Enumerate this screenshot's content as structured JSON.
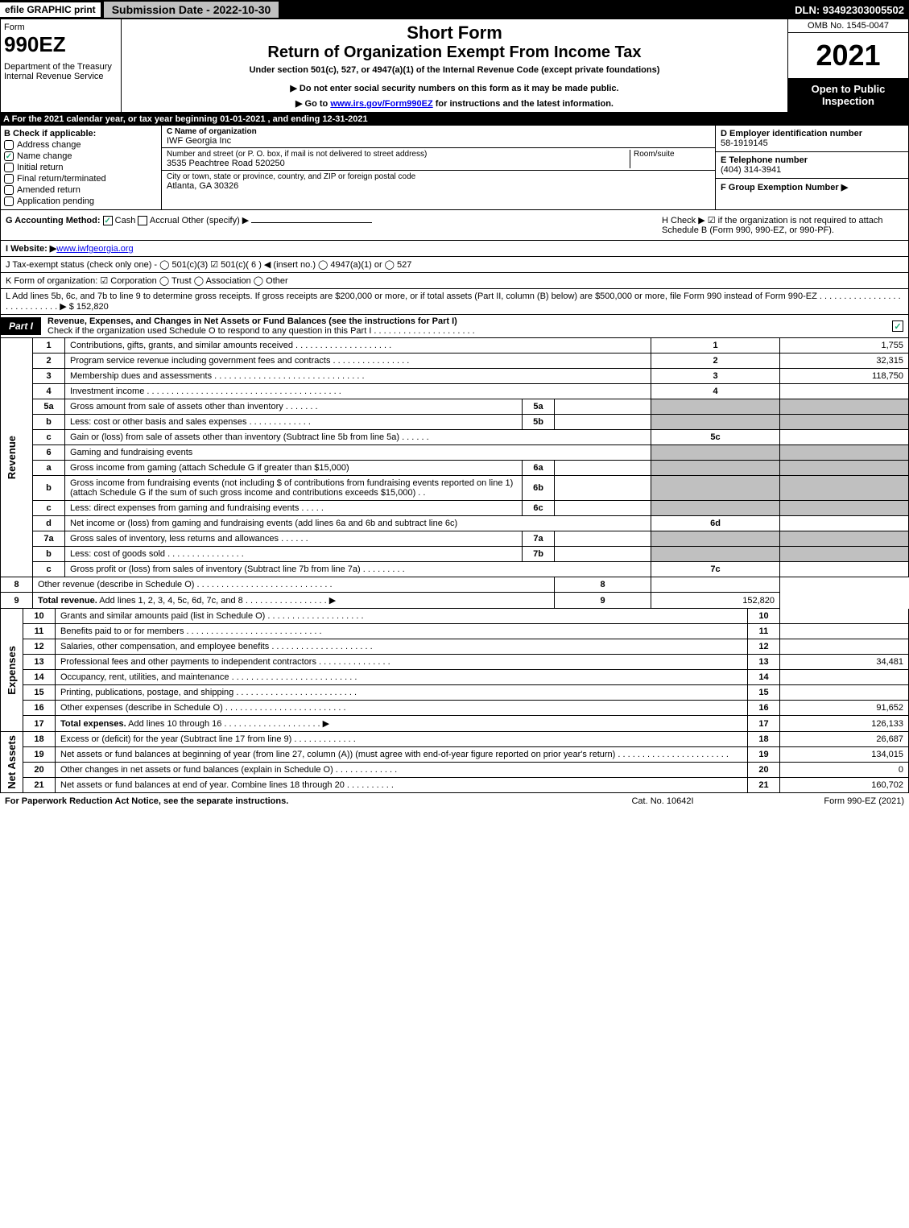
{
  "topbar": {
    "efile": "efile GRAPHIC print",
    "subdate": "Submission Date - 2022-10-30",
    "dln": "DLN: 93492303005502"
  },
  "header": {
    "form": "Form",
    "formnum": "990EZ",
    "dept": "Department of the Treasury\nInternal Revenue Service",
    "short": "Short Form",
    "title": "Return of Organization Exempt From Income Tax",
    "sub": "Under section 501(c), 527, or 4947(a)(1) of the Internal Revenue Code (except private foundations)",
    "note": "▶ Do not enter social security numbers on this form as it may be made public.",
    "linkpre": "▶ Go to ",
    "linkurl": "www.irs.gov/Form990EZ",
    "linkpost": " for instructions and the latest information.",
    "omb": "OMB No. 1545-0047",
    "year": "2021",
    "inspect": "Open to Public Inspection"
  },
  "rowA": "A  For the 2021 calendar year, or tax year beginning 01-01-2021 , and ending 12-31-2021",
  "sectionB": {
    "header": "B  Check if applicable:",
    "items": [
      {
        "label": "Address change",
        "checked": false
      },
      {
        "label": "Name change",
        "checked": true
      },
      {
        "label": "Initial return",
        "checked": false
      },
      {
        "label": "Final return/terminated",
        "checked": false
      },
      {
        "label": "Amended return",
        "checked": false
      },
      {
        "label": "Application pending",
        "checked": false
      }
    ],
    "c_label": "C Name of organization",
    "c_name": "IWF Georgia Inc",
    "street_label": "Number and street (or P. O. box, if mail is not delivered to street address)",
    "street": "3535 Peachtree Road 520250",
    "room_label": "Room/suite",
    "city_label": "City or town, state or province, country, and ZIP or foreign postal code",
    "city": "Atlanta, GA  30326",
    "d_label": "D Employer identification number",
    "d_val": "58-1919145",
    "e_label": "E Telephone number",
    "e_val": "(404) 314-3941",
    "f_label": "F Group Exemption Number  ▶"
  },
  "rowGH": {
    "g_label": "G Accounting Method:",
    "g_cash": "Cash",
    "g_accrual": "Accrual",
    "g_other": "Other (specify) ▶",
    "h_text": "H  Check ▶ ☑ if the organization is not required to attach Schedule B (Form 990, 990-EZ, or 990-PF)."
  },
  "rowI": {
    "label": "I Website: ▶",
    "val": "www.iwfgeorgia.org"
  },
  "rowJ": "J Tax-exempt status (check only one) - ◯ 501(c)(3) ☑ 501(c)( 6 ) ◀ (insert no.) ◯ 4947(a)(1) or ◯ 527",
  "rowK": "K Form of organization: ☑ Corporation  ◯ Trust  ◯ Association  ◯ Other",
  "rowL": {
    "text": "L Add lines 5b, 6c, and 7b to line 9 to determine gross receipts. If gross receipts are $200,000 or more, or if total assets (Part II, column (B) below) are $500,000 or more, file Form 990 instead of Form 990-EZ  . . . . . . . . . . . . . . . . . . . . . . . . . . . . ▶ $",
    "amt": " 152,820"
  },
  "part1": {
    "tab": "Part I",
    "title": "Revenue, Expenses, and Changes in Net Assets or Fund Balances (see the instructions for Part I)",
    "sub": "Check if the organization used Schedule O to respond to any question in this Part I . . . . . . . . . . . . . . . . . . . . ."
  },
  "sections": {
    "revenue": "Revenue",
    "expenses": "Expenses",
    "netassets": "Net Assets"
  },
  "lines": [
    {
      "n": "1",
      "desc": "Contributions, gifts, grants, and similar amounts received . . . . . . . . . . . . . . . . . . . .",
      "ln": "1",
      "amt": "1,755"
    },
    {
      "n": "2",
      "desc": "Program service revenue including government fees and contracts . . . . . . . . . . . . . . . .",
      "ln": "2",
      "amt": "32,315"
    },
    {
      "n": "3",
      "desc": "Membership dues and assessments . . . . . . . . . . . . . . . . . . . . . . . . . . . . . . .",
      "ln": "3",
      "amt": "118,750"
    },
    {
      "n": "4",
      "desc": "Investment income . . . . . . . . . . . . . . . . . . . . . . . . . . . . . . . . . . . . . . . .",
      "ln": "4",
      "amt": ""
    },
    {
      "n": "5a",
      "desc": "Gross amount from sale of assets other than inventory . . . . . . .",
      "sub": "5a",
      "subval": "",
      "ln": "",
      "amt": "",
      "grey": true
    },
    {
      "n": "b",
      "desc": "Less: cost or other basis and sales expenses . . . . . . . . . . . . .",
      "sub": "5b",
      "subval": "",
      "ln": "",
      "amt": "",
      "grey": true
    },
    {
      "n": "c",
      "desc": "Gain or (loss) from sale of assets other than inventory (Subtract line 5b from line 5a)  . . . . . .",
      "ln": "5c",
      "amt": ""
    },
    {
      "n": "6",
      "desc": "Gaming and fundraising events",
      "ln": "",
      "amt": "",
      "grey": true
    },
    {
      "n": "a",
      "desc": "Gross income from gaming (attach Schedule G if greater than $15,000)",
      "sub": "6a",
      "subval": "",
      "ln": "",
      "amt": "",
      "grey": true
    },
    {
      "n": "b",
      "desc": "Gross income from fundraising events (not including $                       of contributions from fundraising events reported on line 1) (attach Schedule G if the sum of such gross income and contributions exceeds $15,000)   .  .",
      "sub": "6b",
      "subval": "",
      "ln": "",
      "amt": "",
      "grey": true
    },
    {
      "n": "c",
      "desc": "Less: direct expenses from gaming and fundraising events  . . . . .",
      "sub": "6c",
      "subval": "",
      "ln": "",
      "amt": "",
      "grey": true
    },
    {
      "n": "d",
      "desc": "Net income or (loss) from gaming and fundraising events (add lines 6a and 6b and subtract line 6c)",
      "ln": "6d",
      "amt": ""
    },
    {
      "n": "7a",
      "desc": "Gross sales of inventory, less returns and allowances . . . . . .",
      "sub": "7a",
      "subval": "",
      "ln": "",
      "amt": "",
      "grey": true
    },
    {
      "n": "b",
      "desc": "Less: cost of goods sold       . . . . . . . . . . . . . . . .",
      "sub": "7b",
      "subval": "",
      "ln": "",
      "amt": "",
      "grey": true
    },
    {
      "n": "c",
      "desc": "Gross profit or (loss) from sales of inventory (Subtract line 7b from line 7a)  . . . . . . . . .",
      "ln": "7c",
      "amt": ""
    },
    {
      "n": "8",
      "desc": "Other revenue (describe in Schedule O) . . . . . . . . . . . . . . . . . . . . . . . . . . . .",
      "ln": "8",
      "amt": ""
    },
    {
      "n": "9",
      "desc": "Total revenue. Add lines 1, 2, 3, 4, 5c, 6d, 7c, and 8  . . . . . . . . . . . . . . . . .          ▶",
      "ln": "9",
      "amt": "152,820",
      "bold": true
    }
  ],
  "expLines": [
    {
      "n": "10",
      "desc": "Grants and similar amounts paid (list in Schedule O) . . . . . . . . . . . . . . . . . . . .",
      "ln": "10",
      "amt": ""
    },
    {
      "n": "11",
      "desc": "Benefits paid to or for members      . . . . . . . . . . . . . . . . . . . . . . . . . . . .",
      "ln": "11",
      "amt": ""
    },
    {
      "n": "12",
      "desc": "Salaries, other compensation, and employee benefits . . . . . . . . . . . . . . . . . . . . .",
      "ln": "12",
      "amt": ""
    },
    {
      "n": "13",
      "desc": "Professional fees and other payments to independent contractors . . . . . . . . . . . . . . .",
      "ln": "13",
      "amt": "34,481"
    },
    {
      "n": "14",
      "desc": "Occupancy, rent, utilities, and maintenance . . . . . . . . . . . . . . . . . . . . . . . . . .",
      "ln": "14",
      "amt": ""
    },
    {
      "n": "15",
      "desc": "Printing, publications, postage, and shipping . . . . . . . . . . . . . . . . . . . . . . . . .",
      "ln": "15",
      "amt": ""
    },
    {
      "n": "16",
      "desc": "Other expenses (describe in Schedule O)     . . . . . . . . . . . . . . . . . . . . . . . . .",
      "ln": "16",
      "amt": "91,652"
    },
    {
      "n": "17",
      "desc": "Total expenses. Add lines 10 through 16      . . . . . . . . . . . . . . . . . . . .         ▶",
      "ln": "17",
      "amt": "126,133",
      "bold": true
    }
  ],
  "naLines": [
    {
      "n": "18",
      "desc": "Excess or (deficit) for the year (Subtract line 17 from line 9)       . . . . . . . . . . . . .",
      "ln": "18",
      "amt": "26,687"
    },
    {
      "n": "19",
      "desc": "Net assets or fund balances at beginning of year (from line 27, column (A)) (must agree with end-of-year figure reported on prior year's return) . . . . . . . . . . . . . . . . . . . . . . .",
      "ln": "19",
      "amt": "134,015",
      "tall": true
    },
    {
      "n": "20",
      "desc": "Other changes in net assets or fund balances (explain in Schedule O) . . . . . . . . . . . . .",
      "ln": "20",
      "amt": "0"
    },
    {
      "n": "21",
      "desc": "Net assets or fund balances at end of year. Combine lines 18 through 20 . . . . . . . . . .",
      "ln": "21",
      "amt": "160,702"
    }
  ],
  "footer": {
    "left": "For Paperwork Reduction Act Notice, see the separate instructions.",
    "mid": "Cat. No. 10642I",
    "right": "Form 990-EZ (2021)"
  }
}
